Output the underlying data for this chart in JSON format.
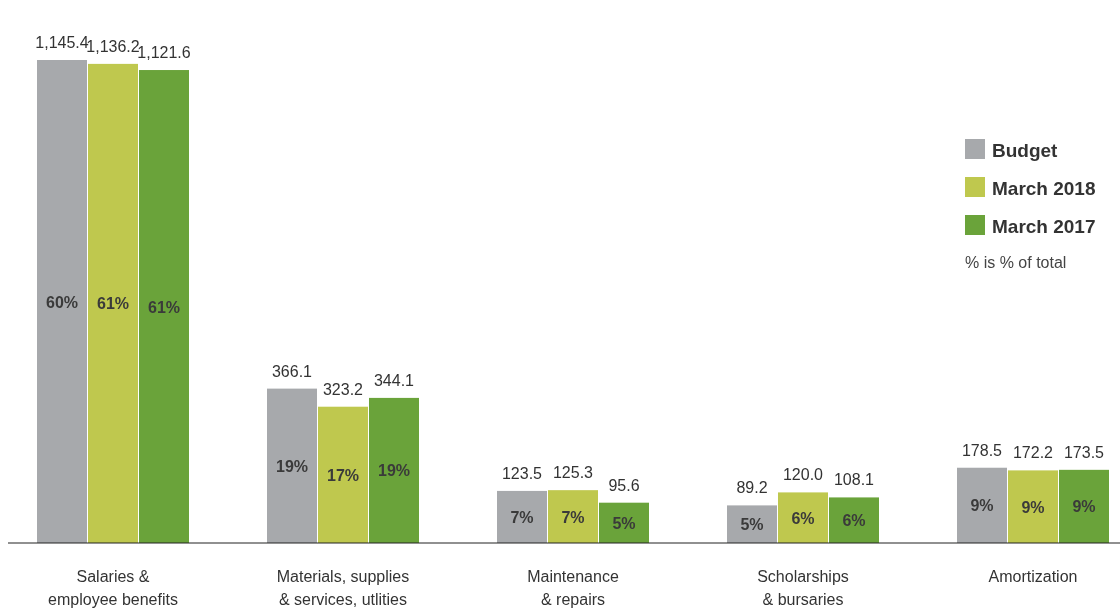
{
  "chart_data": {
    "type": "bar",
    "categories": [
      "Salaries & employee benefits",
      "Materials, supplies & services, utlities",
      "Maintenance & repairs",
      "Scholarships & bursaries",
      "Amortization"
    ],
    "series": [
      {
        "name": "Budget",
        "color": "#a7a9ac",
        "values": [
          1145.4,
          366.1,
          123.5,
          89.2,
          178.5
        ],
        "value_labels": [
          "1,145.4",
          "366.1",
          "123.5",
          "89.2",
          "178.5"
        ]
      },
      {
        "name": "March 2018",
        "color": "#bfc84e",
        "values": [
          1136.2,
          323.2,
          125.3,
          120.0,
          172.2
        ],
        "value_labels": [
          "1,136.2",
          "323.2",
          "125.3",
          "120.0",
          "172.2"
        ]
      },
      {
        "name": "March 2017",
        "color": "#6aa33a",
        "values": [
          1121.6,
          344.1,
          95.6,
          108.1,
          173.5
        ],
        "value_labels": [
          "1,121.6",
          "344.1",
          "95.6",
          "108.1",
          "173.5"
        ]
      }
    ],
    "legend": "right",
    "annotations": [
      "% is % of total",
      "60%",
      "61%",
      "61%",
      "19%",
      "17%",
      "19%",
      "7%",
      "7%",
      "5%",
      "5%",
      "6%",
      "6%",
      "9%",
      "9%",
      "9%"
    ]
  }
}
